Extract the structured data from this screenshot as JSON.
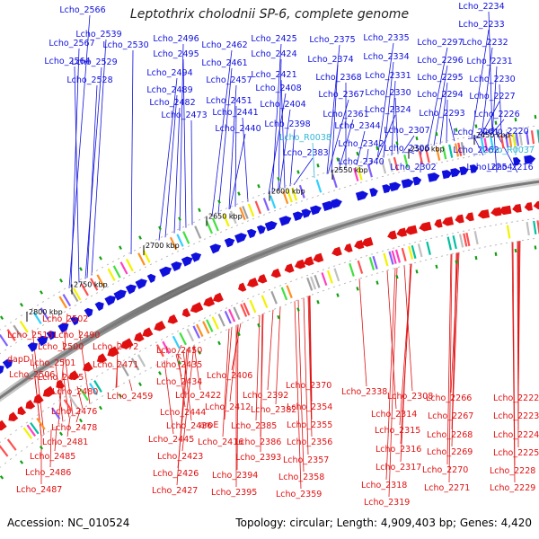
{
  "title": "Leptothrix cholodnii SP-6, complete genome",
  "footer": {
    "accession": "Accession: NC_010524",
    "summary": "Topology: circular; Length: 4,909,403 bp; Genes: 4,420"
  },
  "colors": {
    "plus_strand": "#1010dd",
    "minus_strand": "#e01010",
    "rna_gene": "#30b8d8",
    "backbone": "#7a7a7a"
  },
  "ruler": [
    {
      "label": "2800 kbp"
    },
    {
      "label": "2750 kbp"
    },
    {
      "label": "2700 kbp"
    },
    {
      "label": "2650 kbp"
    },
    {
      "label": "2600 kbp"
    },
    {
      "label": "2550 kbp"
    },
    {
      "label": "2500 kbp"
    },
    {
      "label": "2450 kbp"
    }
  ],
  "top_labels": [
    {
      "text": "Lcho_2566"
    },
    {
      "text": "Lcho_2539"
    },
    {
      "text": "Lcho_2567"
    },
    {
      "text": "Lcho_2530"
    },
    {
      "text": "Lcho_2564"
    },
    {
      "text": "Lcho_2529"
    },
    {
      "text": "Lcho_2528"
    },
    {
      "text": "Lcho_2496"
    },
    {
      "text": "Lcho_2495"
    },
    {
      "text": "Lcho_2494"
    },
    {
      "text": "Lcho_2489"
    },
    {
      "text": "Lcho_2482"
    },
    {
      "text": "Lcho_2473"
    },
    {
      "text": "Lcho_2462"
    },
    {
      "text": "Lcho_2461"
    },
    {
      "text": "Lcho_2457"
    },
    {
      "text": "Lcho_2451"
    },
    {
      "text": "Lcho_2441"
    },
    {
      "text": "Lcho_2440"
    },
    {
      "text": "Lcho_2425"
    },
    {
      "text": "Lcho_2424"
    },
    {
      "text": "Lcho_2421"
    },
    {
      "text": "Lcho_2408"
    },
    {
      "text": "Lcho_2404"
    },
    {
      "text": "Lcho_2398"
    },
    {
      "text": "Lcho_R0038",
      "rna": true
    },
    {
      "text": "Lcho_2383"
    },
    {
      "text": "Lcho_2375"
    },
    {
      "text": "Lcho_2374"
    },
    {
      "text": "Lcho_2368"
    },
    {
      "text": "Lcho_2367"
    },
    {
      "text": "Lcho_2361"
    },
    {
      "text": "Lcho_2344"
    },
    {
      "text": "Lcho_2342"
    },
    {
      "text": "Lcho_2340"
    },
    {
      "text": "Lcho_2335"
    },
    {
      "text": "Lcho_2334"
    },
    {
      "text": "Lcho_2331"
    },
    {
      "text": "Lcho_2330"
    },
    {
      "text": "Lcho_2324"
    },
    {
      "text": "Lcho_2307"
    },
    {
      "text": "Lcho_2306"
    },
    {
      "text": "Lcho_2302"
    },
    {
      "text": "Lcho_2297"
    },
    {
      "text": "Lcho_2296"
    },
    {
      "text": "Lcho_2295"
    },
    {
      "text": "Lcho_2294"
    },
    {
      "text": "Lcho_2293"
    },
    {
      "text": "Lcho_2261"
    },
    {
      "text": "Lcho_2262"
    },
    {
      "text": "Lcho_2254"
    },
    {
      "text": "Lcho_2234"
    },
    {
      "text": "Lcho_2233"
    },
    {
      "text": "Lcho_2232"
    },
    {
      "text": "Lcho_2231"
    },
    {
      "text": "Lcho_2230"
    },
    {
      "text": "Lcho_2227"
    },
    {
      "text": "Lcho_2226"
    },
    {
      "text": "Lcho_2220"
    },
    {
      "text": "Lcho_R0037",
      "rna": true
    },
    {
      "text": "Lcho_2216"
    }
  ],
  "bottom_labels": [
    {
      "text": "Lcho_2502"
    },
    {
      "text": "Lcho_2515"
    },
    {
      "text": "Lcho_2490"
    },
    {
      "text": "Lcho_2500"
    },
    {
      "text": "dapD"
    },
    {
      "text": "Lcho_2501"
    },
    {
      "text": "Lcho_2506"
    },
    {
      "text": "Lcho_2475"
    },
    {
      "text": "Lcho_2480"
    },
    {
      "text": "Lcho_2476"
    },
    {
      "text": "Lcho_2478"
    },
    {
      "text": "Lcho_2481"
    },
    {
      "text": "Lcho_2485"
    },
    {
      "text": "Lcho_2486"
    },
    {
      "text": "Lcho_2487"
    },
    {
      "text": "Lcho_2472"
    },
    {
      "text": "Lcho_2471"
    },
    {
      "text": "Lcho_2459"
    },
    {
      "text": "Lcho_2450"
    },
    {
      "text": "Lcho_2435"
    },
    {
      "text": "Lcho_2434"
    },
    {
      "text": "Lcho_2422"
    },
    {
      "text": "Lcho_2444"
    },
    {
      "text": "Lcho_2436"
    },
    {
      "text": "Lcho_2445"
    },
    {
      "text": "Lcho_2423"
    },
    {
      "text": "Lcho_2426"
    },
    {
      "text": "Lcho_2427"
    },
    {
      "text": "Lcho_2406"
    },
    {
      "text": "Lcho_2412"
    },
    {
      "text": "aroE"
    },
    {
      "text": "Lcho_2416"
    },
    {
      "text": "Lcho_2392"
    },
    {
      "text": "Lcho_2382"
    },
    {
      "text": "Lcho_2385"
    },
    {
      "text": "Lcho_2386"
    },
    {
      "text": "Lcho_2393"
    },
    {
      "text": "Lcho_2394"
    },
    {
      "text": "Lcho_2395"
    },
    {
      "text": "Lcho_2370"
    },
    {
      "text": "Lcho_2354"
    },
    {
      "text": "Lcho_2355"
    },
    {
      "text": "Lcho_2356"
    },
    {
      "text": "Lcho_2357"
    },
    {
      "text": "Lcho_2358"
    },
    {
      "text": "Lcho_2359"
    },
    {
      "text": "Lcho_2338"
    },
    {
      "text": "Lcho_2308"
    },
    {
      "text": "Lcho_2314"
    },
    {
      "text": "Lcho_2315"
    },
    {
      "text": "Lcho_2316"
    },
    {
      "text": "Lcho_2317"
    },
    {
      "text": "Lcho_2318"
    },
    {
      "text": "Lcho_2319"
    },
    {
      "text": "Lcho_2266"
    },
    {
      "text": "Lcho_2267"
    },
    {
      "text": "Lcho_2268"
    },
    {
      "text": "Lcho_2269"
    },
    {
      "text": "Lcho_2270"
    },
    {
      "text": "Lcho_2271"
    },
    {
      "text": "Lcho_2222"
    },
    {
      "text": "Lcho_2223"
    },
    {
      "text": "Lcho_2224"
    },
    {
      "text": "Lcho_2225"
    },
    {
      "text": "Lcho_2228"
    },
    {
      "text": "Lcho_2229"
    }
  ]
}
